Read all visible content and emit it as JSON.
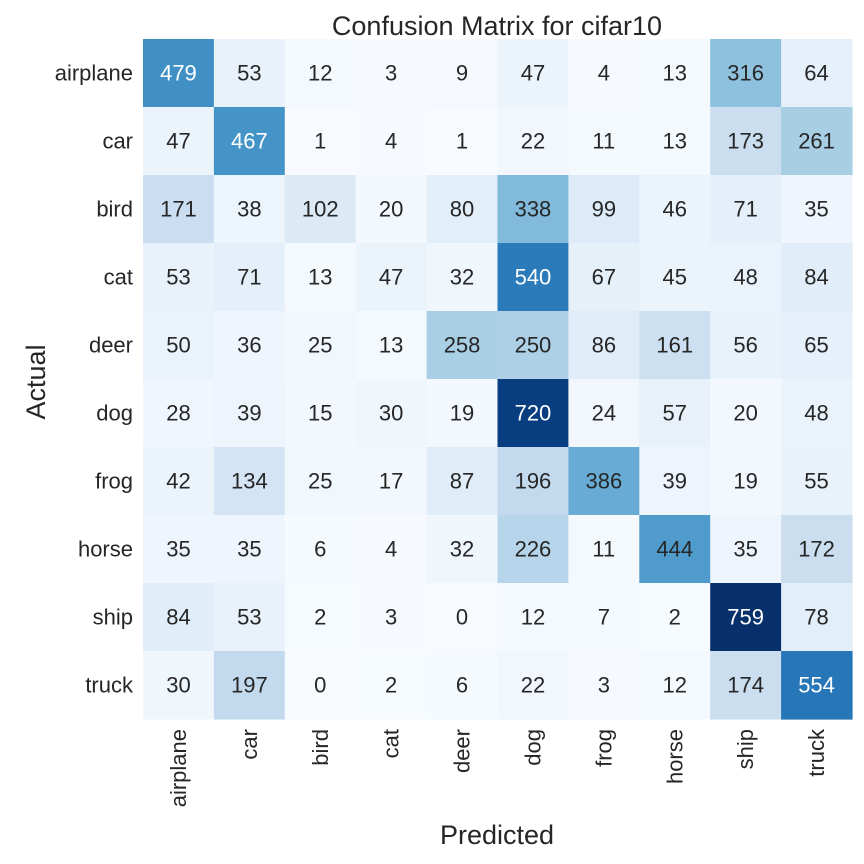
{
  "chart_data": {
    "type": "heatmap",
    "title": "Confusion Matrix for cifar10",
    "xlabel": "Predicted",
    "ylabel": "Actual",
    "x_categories": [
      "airplane",
      "car",
      "bird",
      "cat",
      "deer",
      "dog",
      "frog",
      "horse",
      "ship",
      "truck"
    ],
    "y_categories": [
      "airplane",
      "car",
      "bird",
      "cat",
      "deer",
      "dog",
      "frog",
      "horse",
      "ship",
      "truck"
    ],
    "values": [
      [
        479,
        53,
        12,
        3,
        9,
        47,
        4,
        13,
        316,
        64
      ],
      [
        47,
        467,
        1,
        4,
        1,
        22,
        11,
        13,
        173,
        261
      ],
      [
        171,
        38,
        102,
        20,
        80,
        338,
        99,
        46,
        71,
        35
      ],
      [
        53,
        71,
        13,
        47,
        32,
        540,
        67,
        45,
        48,
        84
      ],
      [
        50,
        36,
        25,
        13,
        258,
        250,
        86,
        161,
        56,
        65
      ],
      [
        28,
        39,
        15,
        30,
        19,
        720,
        24,
        57,
        20,
        48
      ],
      [
        42,
        134,
        25,
        17,
        87,
        196,
        386,
        39,
        19,
        55
      ],
      [
        35,
        35,
        6,
        4,
        32,
        226,
        11,
        444,
        35,
        172
      ],
      [
        84,
        53,
        2,
        3,
        0,
        12,
        7,
        2,
        759,
        78
      ],
      [
        30,
        197,
        0,
        2,
        6,
        22,
        3,
        12,
        174,
        554
      ]
    ],
    "colormap": "Blues",
    "colorbar": false,
    "grid": false
  }
}
